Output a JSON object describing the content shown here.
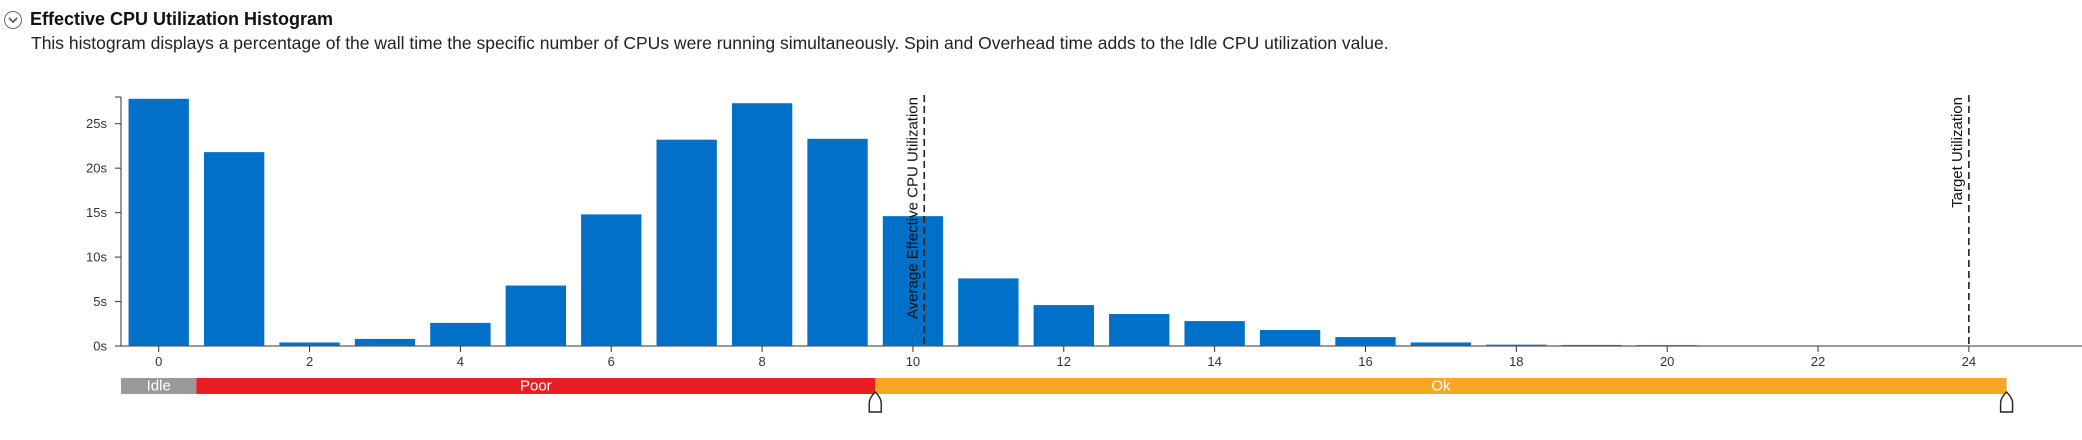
{
  "header": {
    "title": "Effective CPU Utilization Histogram",
    "description": "This histogram displays a percentage of the wall time the specific number of CPUs were running simultaneously. Spin and Overhead time adds to the Idle CPU utilization value.",
    "collapse_icon": "chevron-down-icon"
  },
  "chart_data": {
    "type": "bar",
    "title": "",
    "xlabel": "",
    "ylabel": "",
    "x": [
      0,
      1,
      2,
      3,
      4,
      5,
      6,
      7,
      8,
      9,
      10,
      11,
      12,
      13,
      14,
      15,
      16,
      17,
      18,
      19,
      20,
      21
    ],
    "values": [
      27.8,
      21.8,
      0.4,
      0.8,
      2.6,
      6.8,
      14.8,
      23.2,
      27.3,
      23.3,
      14.6,
      7.6,
      4.6,
      3.6,
      2.8,
      1.8,
      1.0,
      0.4,
      0.15,
      0.12,
      0.1,
      0
    ],
    "x_ticks": [
      0,
      2,
      4,
      6,
      8,
      10,
      12,
      14,
      16,
      18,
      20,
      22,
      24
    ],
    "x_tick_labels": [
      "0",
      "2",
      "4",
      "6",
      "8",
      "10",
      "12",
      "14",
      "16",
      "18",
      "20",
      "22",
      "24"
    ],
    "xlim": [
      -0.5,
      25.5
    ],
    "ylim": [
      0,
      28
    ],
    "y_ticks": [
      0,
      5,
      10,
      15,
      20,
      25
    ],
    "y_tick_labels": [
      "0s",
      "5s",
      "10s",
      "15s",
      "20s",
      "25s"
    ],
    "bar_color": "#0070c8",
    "reference_lines": [
      {
        "label": "Average Effective CPU Utilization",
        "x": 10.15
      },
      {
        "label": "Target Utilization",
        "x": 24
      }
    ],
    "utilization_bands": [
      {
        "label": "Idle",
        "from": -0.5,
        "to": 0.5,
        "color": "#999999"
      },
      {
        "label": "Poor",
        "from": 0.5,
        "to": 9.5,
        "color": "#ea1c24"
      },
      {
        "label": "Ok",
        "from": 9.5,
        "to": 24.5,
        "color": "#f5a623"
      }
    ],
    "band_handles": [
      9.5,
      24.5
    ]
  }
}
